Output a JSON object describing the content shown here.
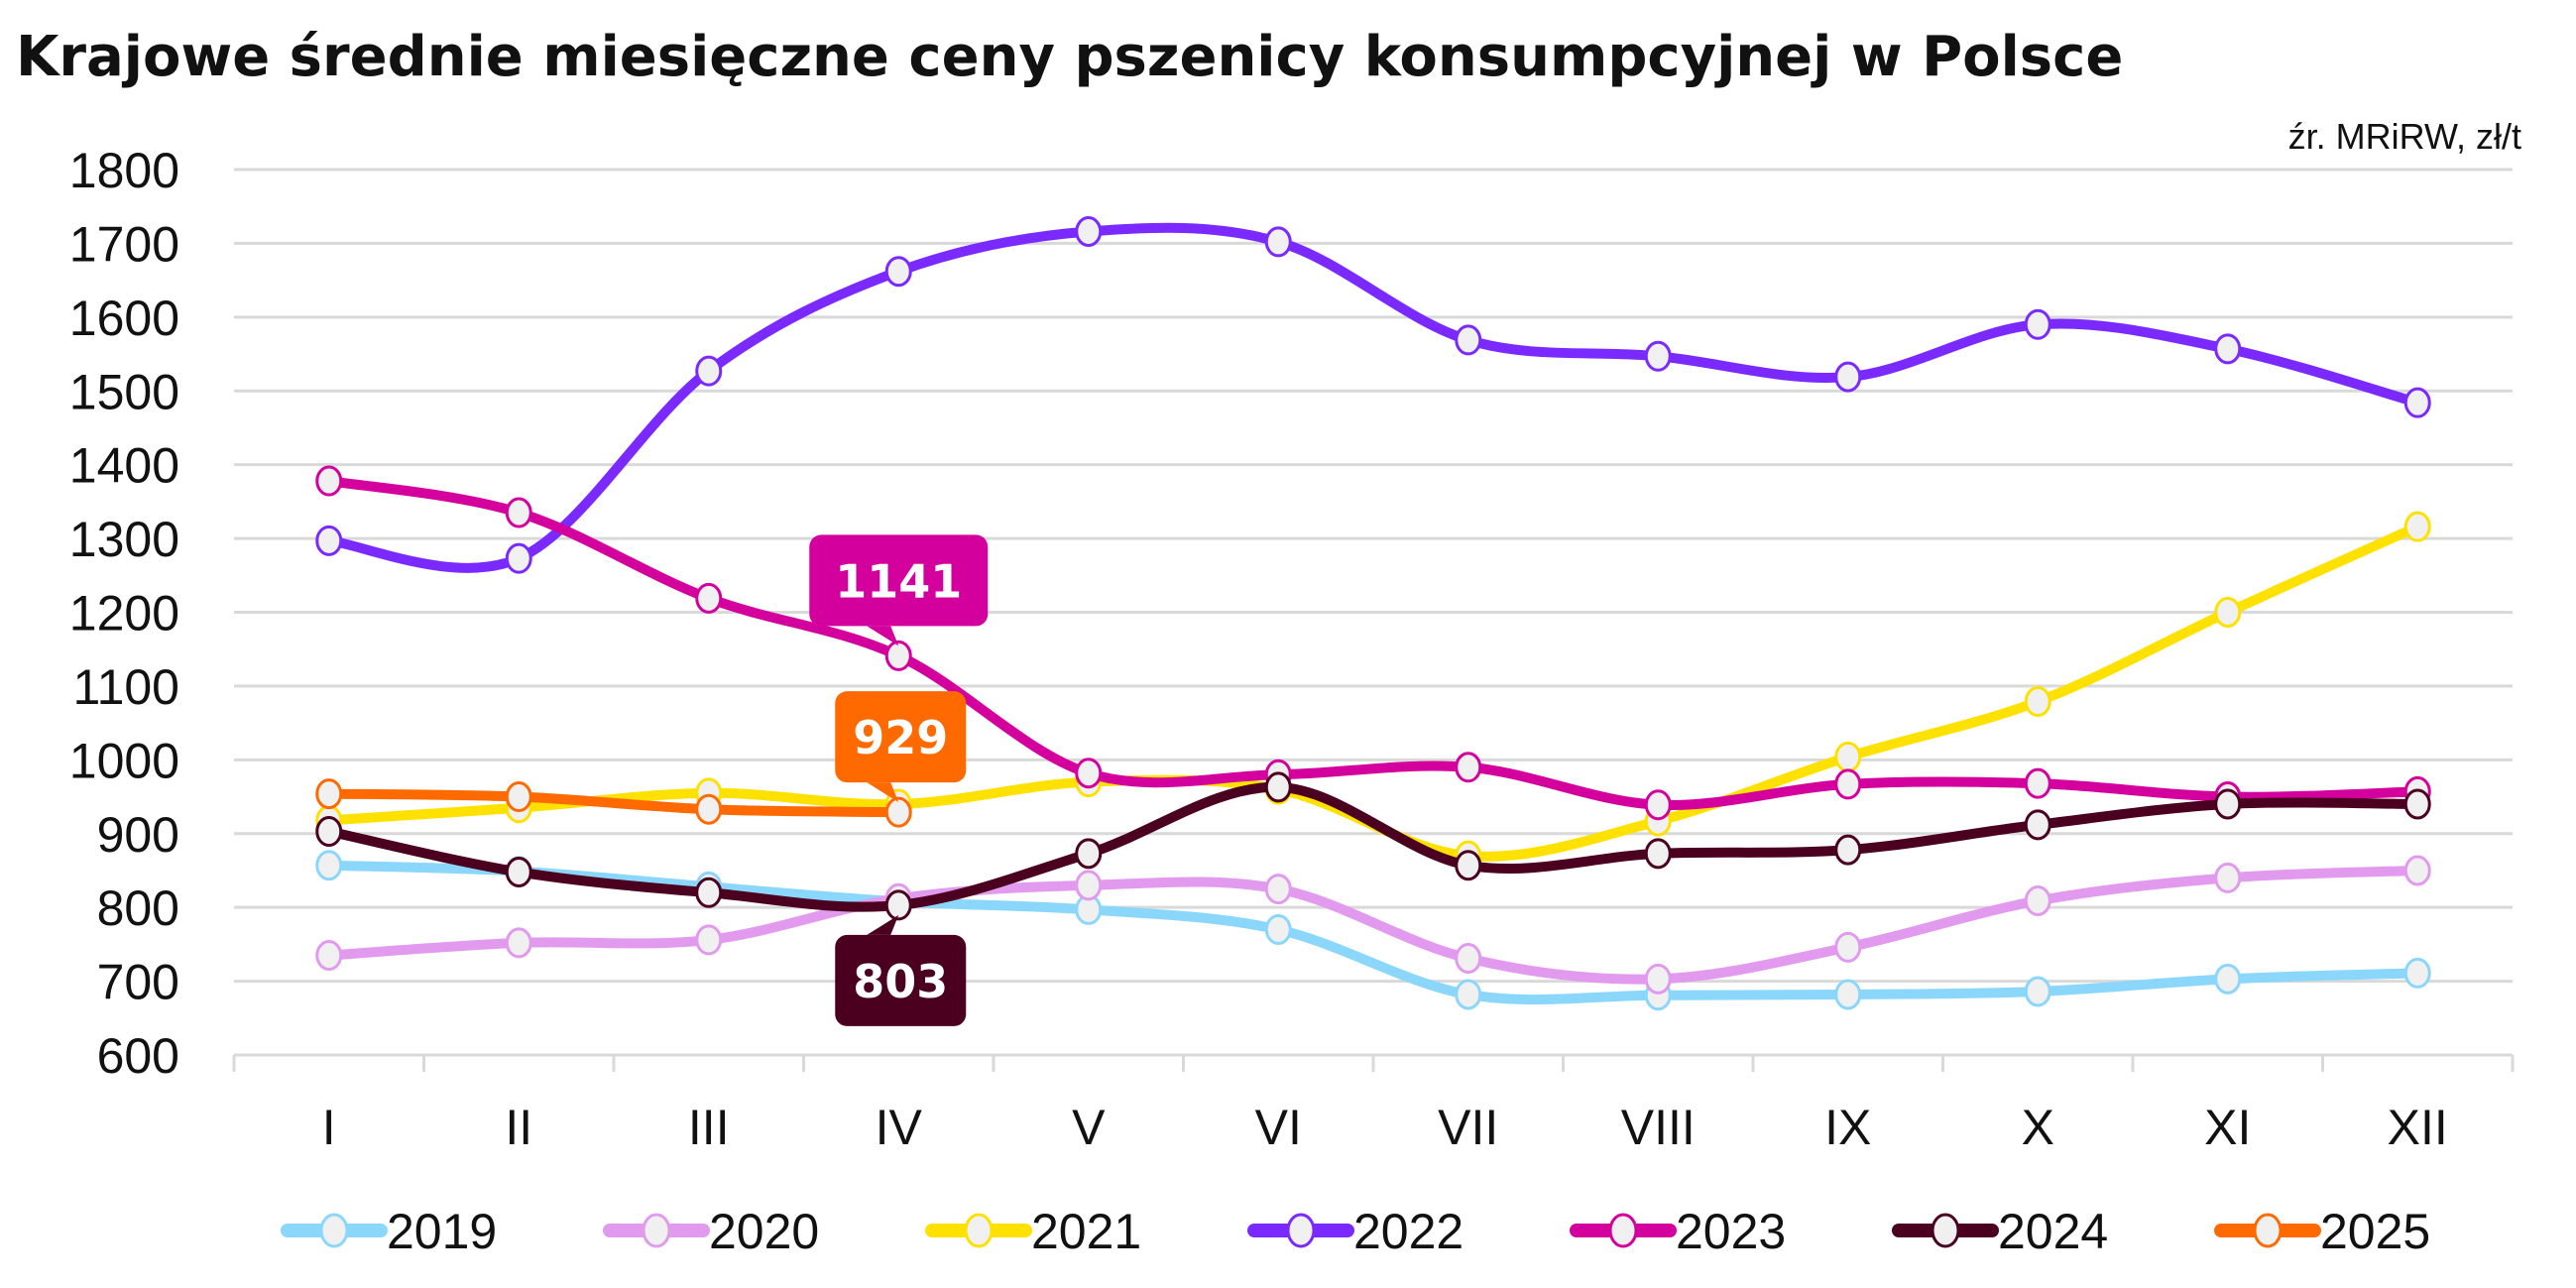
{
  "chart_data": {
    "type": "line",
    "title": "Krajowe średnie miesięczne ceny pszenicy konsumpcyjnej w Polsce",
    "subtitle": "źr. MRiRW, zł/t",
    "xlabel": "",
    "ylabel": "",
    "ylim": [
      600,
      1800
    ],
    "yticks": [
      600,
      700,
      800,
      900,
      1000,
      1100,
      1200,
      1300,
      1400,
      1500,
      1600,
      1700,
      1800
    ],
    "categories": [
      "I",
      "II",
      "III",
      "IV",
      "V",
      "VI",
      "VII",
      "VIII",
      "IX",
      "X",
      "XI",
      "XII"
    ],
    "grid": true,
    "legend_position": "bottom",
    "marker_fill": "#f0f0f0",
    "series": [
      {
        "name": "2019",
        "color": "#8bd7fb",
        "values": [
          857,
          849,
          828,
          808,
          797,
          770,
          682,
          681,
          682,
          686,
          703,
          711
        ]
      },
      {
        "name": "2020",
        "color": "#e19aee",
        "values": [
          735,
          752,
          756,
          812,
          830,
          825,
          731,
          703,
          746,
          809,
          840,
          850
        ]
      },
      {
        "name": "2021",
        "color": "#ffe100",
        "values": [
          918,
          935,
          955,
          940,
          970,
          960,
          870,
          917,
          1004,
          1079,
          1200,
          1316
        ]
      },
      {
        "name": "2022",
        "color": "#7a29ff",
        "values": [
          1297,
          1273,
          1527,
          1662,
          1716,
          1702,
          1569,
          1547,
          1519,
          1590,
          1557,
          1484
        ]
      },
      {
        "name": "2023",
        "color": "#d4009e",
        "values": [
          1378,
          1335,
          1219,
          1141,
          982,
          980,
          990,
          939,
          967,
          968,
          950,
          957
        ]
      },
      {
        "name": "2024",
        "color": "#4b0020",
        "values": [
          903,
          848,
          820,
          803,
          873,
          963,
          857,
          873,
          878,
          912,
          940,
          940
        ]
      },
      {
        "name": "2025",
        "color": "#ff6a00",
        "values": [
          954,
          950,
          933,
          929,
          null,
          null,
          null,
          null,
          null,
          null,
          null,
          null
        ]
      }
    ],
    "annotations": [
      {
        "series": "2023",
        "category": "IV",
        "text": "1141",
        "color": "#d4009e",
        "placement": "above"
      },
      {
        "series": "2025",
        "category": "IV",
        "text": "929",
        "color": "#ff6a00",
        "placement": "above"
      },
      {
        "series": "2024",
        "category": "IV",
        "text": "803",
        "color": "#4b0020",
        "placement": "below"
      }
    ]
  }
}
